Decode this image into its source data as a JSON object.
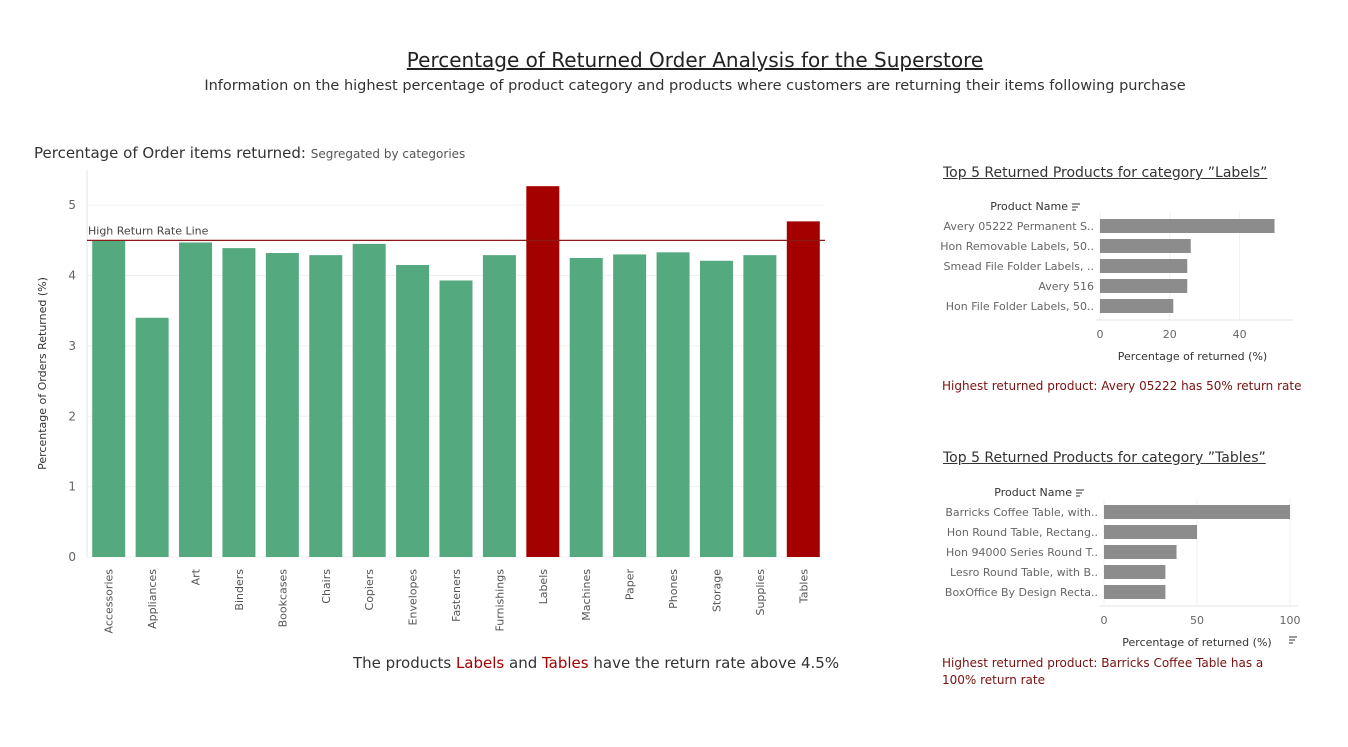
{
  "dashboard": {
    "title": "Percentage of Returned Order Analysis for the Superstore",
    "subtitle": "Information on the highest percentage of product category and products where customers are returning their items following purchase"
  },
  "colors": {
    "normal": "#55a97f",
    "highlight": "#a50000",
    "product_bar": "#8c8c8c",
    "ref_line": "#8b1a1a"
  },
  "main": {
    "title": "Percentage of Order items returned:",
    "title_sub": "Segregated by categories",
    "caption": {
      "part1": "The products ",
      "labels": "Labels",
      "and": " and ",
      "tables": "Tables",
      "part2": " have the return rate above 4.5%"
    }
  },
  "chart_data": [
    {
      "type": "bar",
      "ylabel": "Percentage of Orders Returned (%)",
      "ylim": [
        0,
        5.5
      ],
      "yticks": [
        0,
        1,
        2,
        3,
        4,
        5
      ],
      "reference_line": {
        "value": 4.5,
        "label": "High Return Rate Line"
      },
      "categories": [
        "Accessories",
        "Appliances",
        "Art",
        "Binders",
        "Bookcases",
        "Chairs",
        "Copiers",
        "Envelopes",
        "Fasteners",
        "Furnishings",
        "Labels",
        "Machines",
        "Paper",
        "Phones",
        "Storage",
        "Supplies",
        "Tables"
      ],
      "values": [
        4.5,
        3.4,
        4.47,
        4.39,
        4.32,
        4.29,
        4.45,
        4.15,
        3.93,
        4.29,
        5.27,
        4.25,
        4.3,
        4.33,
        4.21,
        4.29,
        4.77
      ],
      "highlighted": [
        "Labels",
        "Tables"
      ]
    },
    {
      "type": "bar",
      "orientation": "horizontal",
      "title": "Top 5 Returned Products for category ”Labels”",
      "column_header": "Product Name",
      "xlabel": "Percentage of returned (%)",
      "xlim": [
        0,
        53
      ],
      "xticks": [
        0,
        20,
        40
      ],
      "categories": [
        "Avery 05222 Permanent S..",
        "Hon Removable Labels, 50..",
        "Smead File Folder Labels, ..",
        "Avery 516",
        "Hon File Folder Labels, 50.."
      ],
      "values": [
        50,
        26,
        25,
        25,
        21
      ],
      "note": "Highest returned product: Avery 05222 has 50% return rate"
    },
    {
      "type": "bar",
      "orientation": "horizontal",
      "title": "Top 5 Returned Products for category  ”Tables”",
      "column_header": "Product Name",
      "xlabel": "Percentage of returned (%)",
      "xlim": [
        0,
        100
      ],
      "xticks": [
        0,
        50,
        100
      ],
      "categories": [
        "Barricks Coffee Table, with..",
        "Hon Round Table, Rectang..",
        "Hon 94000 Series Round T..",
        "Lesro Round Table, with B..",
        "BoxOffice By Design Recta.."
      ],
      "values": [
        100,
        50,
        39,
        33,
        33
      ],
      "note": "Highest returned product: Barricks Coffee Table has a 100% return rate"
    }
  ]
}
